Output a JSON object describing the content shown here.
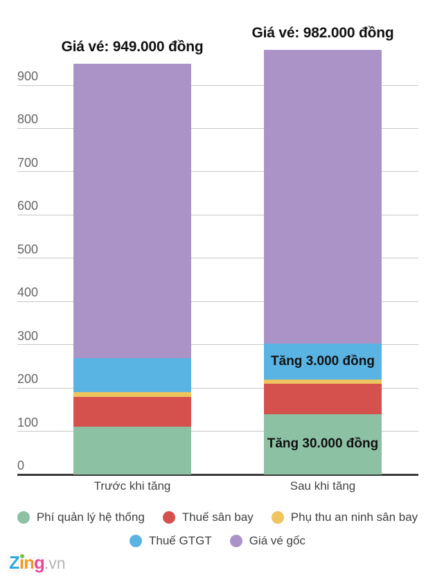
{
  "chart_data": {
    "type": "bar",
    "stacked": true,
    "categories": [
      "Trước khi tăng",
      "Sau khi tăng"
    ],
    "series": [
      {
        "name": "Phí quản lý hệ thống",
        "color": "#8cc1a3",
        "values": [
          110,
          140
        ]
      },
      {
        "name": "Thuế sân bay",
        "color": "#d5514e",
        "values": [
          70,
          70
        ]
      },
      {
        "name": "Phụ thu an ninh sân bay",
        "color": "#edc45d",
        "values": [
          10,
          10
        ]
      },
      {
        "name": "Thuế GTGT",
        "color": "#5ab4e3",
        "values": [
          79,
          82
        ]
      },
      {
        "name": "Giá vé gốc",
        "color": "#ab93c7",
        "values": [
          680,
          680
        ]
      }
    ],
    "totals": [
      949,
      982
    ],
    "bar_titles": [
      "Giá vé: 949.000 đồng",
      "Giá vé: 982.000 đồng"
    ],
    "annotations": [
      {
        "bar_index": 1,
        "series_index": 3,
        "text": "Tăng 3.000 đồng"
      },
      {
        "bar_index": 1,
        "series_index": 0,
        "text": "Tăng 30.000 đồng"
      }
    ],
    "yticks": [
      0,
      100,
      200,
      300,
      400,
      500,
      600,
      700,
      800,
      900
    ],
    "ylim": [
      0,
      1000
    ],
    "grid": true,
    "legend_position": "bottom",
    "legend_rows": [
      [
        0,
        1,
        2
      ],
      [
        3,
        4
      ]
    ]
  },
  "colors": {
    "background": "#ffffff",
    "gridline": "#c7c7c7",
    "axis": "#3a3a3a",
    "tick_text": "#666666",
    "xlabel_text": "#434343",
    "title_text": "#111111",
    "annotation_text": "#111111",
    "legend_text": "#3f3f3f"
  },
  "logo": {
    "letters": [
      {
        "char": "Z",
        "color": "#2fa8de"
      },
      {
        "char": "i",
        "color": "#f49b1f",
        "dot_color": "#7ac143"
      },
      {
        "char": "n",
        "color": "#f49b1f"
      },
      {
        "char": "g",
        "color": "#e8479b"
      }
    ],
    "suffix": ".vn",
    "suffix_color": "#b5b5b5"
  }
}
